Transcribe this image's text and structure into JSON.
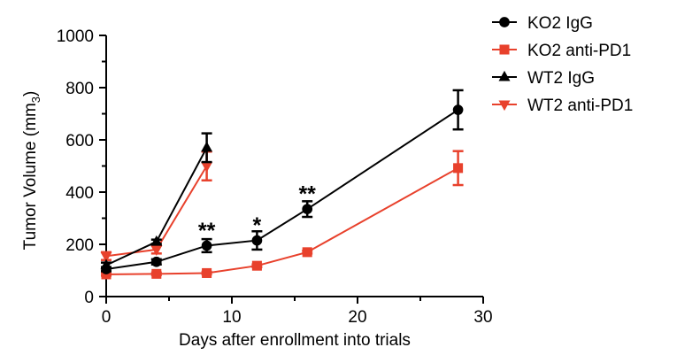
{
  "chart_data": {
    "type": "line",
    "xlabel": "Days after enrollment into trials",
    "ylabel": "Tumor Volume (mm",
    "ylabel_sub": "3",
    "ylabel_close": ")",
    "xlim": [
      0,
      30
    ],
    "ylim": [
      0,
      1000
    ],
    "xticks": [
      0,
      10,
      20,
      30
    ],
    "yticks": [
      0,
      200,
      400,
      600,
      800,
      1000
    ],
    "x_tick_labels": [
      "0",
      "10",
      "20",
      "30"
    ],
    "y_tick_labels": [
      "0",
      "200",
      "400",
      "600",
      "800",
      "1000"
    ],
    "grid": false,
    "legend_position": "top-right",
    "series": [
      {
        "name": "KO2 IgG",
        "marker": "circle",
        "color": "#000000",
        "x": [
          0,
          4,
          8,
          12,
          16,
          28
        ],
        "y": [
          105,
          133,
          195,
          215,
          335,
          715
        ],
        "err": [
          8,
          10,
          25,
          35,
          30,
          75
        ]
      },
      {
        "name": "KO2 anti-PD1",
        "marker": "square",
        "color": "#e8412c",
        "x": [
          0,
          4,
          8,
          12,
          16,
          28
        ],
        "y": [
          85,
          87,
          90,
          118,
          170,
          492
        ],
        "err": [
          5,
          5,
          5,
          5,
          5,
          65
        ]
      },
      {
        "name": "WT2 IgG",
        "marker": "triangle-up",
        "color": "#000000",
        "x": [
          0,
          4,
          8
        ],
        "y": [
          120,
          210,
          570
        ],
        "err": [
          10,
          8,
          55
        ]
      },
      {
        "name": "WT2 anti-PD1",
        "marker": "triangle-down",
        "color": "#e8412c",
        "x": [
          0,
          4,
          8
        ],
        "y": [
          155,
          180,
          500
        ],
        "err": [
          15,
          15,
          55
        ]
      }
    ],
    "annotations": [
      {
        "x": 8,
        "y": 265,
        "text": "**"
      },
      {
        "x": 12,
        "y": 285,
        "text": "*"
      },
      {
        "x": 16,
        "y": 405,
        "text": "**"
      }
    ]
  }
}
